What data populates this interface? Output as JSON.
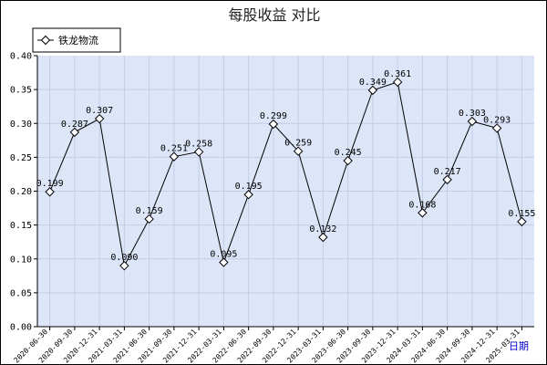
{
  "chart_data": {
    "type": "line",
    "title": "每股收益  对比",
    "series": [
      {
        "name": "铁龙物流",
        "color": "#000000",
        "marker": "diamond",
        "x": [
          "2020-06-30",
          "2020-09-30",
          "2020-12-31",
          "2021-03-31",
          "2021-06-30",
          "2021-09-30",
          "2021-12-31",
          "2022-03-31",
          "2022-06-30",
          "2022-09-30",
          "2022-12-31",
          "2023-03-31",
          "2023-06-30",
          "2023-09-30",
          "2023-12-31",
          "2024-03-31",
          "2024-06-30",
          "2024-09-30",
          "2024-12-31",
          "2025-03-31"
        ],
        "values": [
          0.199,
          0.287,
          0.307,
          0.09,
          0.159,
          0.251,
          0.258,
          0.095,
          0.195,
          0.299,
          0.259,
          0.132,
          0.245,
          0.349,
          0.361,
          0.168,
          0.217,
          0.303,
          0.293,
          0.155
        ],
        "labels": [
          "0.199",
          "0.287",
          "0.307",
          "0.090",
          "0.159",
          "0.251",
          "0.258",
          "0.095",
          "0.195",
          "0.299",
          "0.259",
          "0.132",
          "0.245",
          "0.349",
          "0.361",
          "0.168",
          "0.217",
          "0.303",
          "0.293",
          "0.155"
        ]
      }
    ],
    "categories": [
      "2020-06-30",
      "2020-09-30",
      "2020-12-31",
      "2021-03-31",
      "2021-06-30",
      "2021-09-30",
      "2021-12-31",
      "2022-03-31",
      "2022-06-30",
      "2022-09-30",
      "2022-12-31",
      "2023-03-31",
      "2023-06-30",
      "2023-09-30",
      "2023-12-31",
      "2024-03-31",
      "2024-06-30",
      "2024-09-30",
      "2024-12-31",
      "2025-03-31"
    ],
    "ylim": [
      0,
      0.4
    ],
    "yticks": [
      "0.00",
      "0.05",
      "0.10",
      "0.15",
      "0.20",
      "0.25",
      "0.30",
      "0.35",
      "0.40"
    ],
    "xlabel_unit": "日期",
    "grid": true,
    "legend": "top-left",
    "plot_background": "#dde5f8",
    "grid_color": "#c2cde6"
  }
}
